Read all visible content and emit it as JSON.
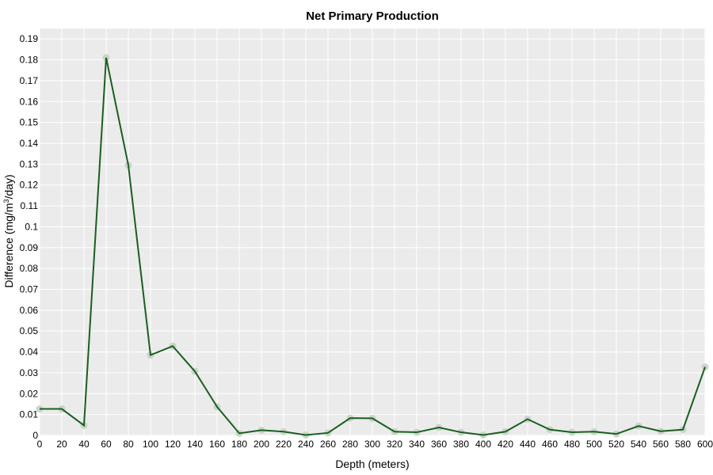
{
  "chart_data": {
    "type": "line",
    "title": "Net Primary Production",
    "xlabel": "Depth (meters)",
    "ylabel_main": "Difference (mg/m",
    "ylabel_sup": "3",
    "ylabel_tail": "/day)",
    "xlim": [
      0,
      600
    ],
    "ylim": [
      0,
      0.195
    ],
    "x_ticks": [
      0,
      20,
      40,
      60,
      80,
      100,
      120,
      140,
      160,
      180,
      200,
      220,
      240,
      260,
      280,
      300,
      320,
      340,
      360,
      380,
      400,
      420,
      440,
      460,
      480,
      500,
      520,
      540,
      560,
      580,
      600
    ],
    "y_ticks": [
      0,
      0.01,
      0.02,
      0.03,
      0.04,
      0.05,
      0.06,
      0.07,
      0.08,
      0.09,
      0.1,
      0.11,
      0.12,
      0.13,
      0.14,
      0.15,
      0.16,
      0.17,
      0.18,
      0.19
    ],
    "y_tick_labels": [
      "0",
      "0.01",
      "0.02",
      "0.03",
      "0.04",
      "0.05",
      "0.06",
      "0.07",
      "0.08",
      "0.09",
      "0.1",
      "0.11",
      "0.12",
      "0.13",
      "0.14",
      "0.15",
      "0.16",
      "0.17",
      "0.18",
      "0.19"
    ],
    "grid": true,
    "colors": {
      "plot_background": "#ebebeb",
      "grid": "#ffffff",
      "line": "#1b5e20",
      "marker": "#c5d3c5"
    },
    "series": [
      {
        "x": [
          0,
          20,
          40,
          60,
          80,
          100,
          120,
          140,
          160,
          180,
          200,
          220,
          240,
          260,
          280,
          300,
          320,
          340,
          360,
          380,
          400,
          420,
          440,
          460,
          480,
          500,
          520,
          540,
          560,
          580,
          600
        ],
        "values": [
          0.0127,
          0.0127,
          0.0048,
          0.181,
          0.1295,
          0.0385,
          0.0428,
          0.0307,
          0.0137,
          0.001,
          0.0025,
          0.0018,
          0.0002,
          0.0012,
          0.0083,
          0.0082,
          0.0018,
          0.0015,
          0.0038,
          0.0015,
          0.0002,
          0.0018,
          0.0078,
          0.0028,
          0.0015,
          0.0018,
          0.0007,
          0.0045,
          0.002,
          0.0028,
          0.0328
        ]
      }
    ]
  }
}
